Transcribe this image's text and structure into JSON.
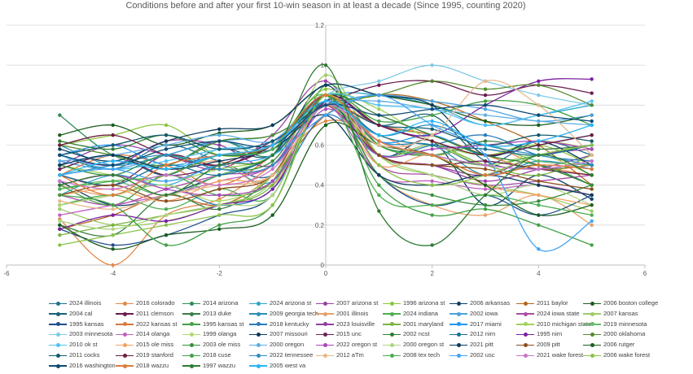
{
  "chart_data": {
    "type": "scatter",
    "title": "Conditions before and after your first 10-win season in at least a decade (Since 1995, counting 2020)",
    "xlabel": "",
    "ylabel": "",
    "xlim": [
      -6,
      6
    ],
    "ylim": [
      0,
      1.2
    ],
    "x_ticks": [
      "-6",
      "-4",
      "-2",
      "0",
      "2",
      "4",
      "6"
    ],
    "y_ticks": [
      "0",
      "0.2",
      "0.4",
      "0.6",
      "0.8",
      "1",
      "1.2"
    ],
    "grid": "horizontal",
    "legend_position": "bottom",
    "x": [
      -5,
      -4,
      -3,
      -2,
      -1,
      0,
      1,
      2,
      3,
      4,
      5
    ],
    "series": [
      {
        "name": "2024 illinois",
        "color": "#1f6f8b",
        "values": [
          0.55,
          0.48,
          0.6,
          0.52,
          0.45,
          0.8,
          0.55,
          0.6,
          0.5,
          0.62,
          0.55
        ]
      },
      {
        "name": "2016 colorado",
        "color": "#e2874a",
        "values": [
          0.23,
          0.0,
          0.25,
          0.33,
          0.5,
          0.72,
          0.65,
          0.55,
          0.6,
          0.5,
          0.45
        ]
      },
      {
        "name": "2014 arizona",
        "color": "#2e8b57",
        "values": [
          0.75,
          0.55,
          0.5,
          0.62,
          0.55,
          0.85,
          0.6,
          0.55,
          0.45,
          0.5,
          0.4
        ]
      },
      {
        "name": "2024 arizona st",
        "color": "#2aa7c9",
        "values": [
          0.35,
          0.45,
          0.4,
          0.5,
          0.42,
          0.82,
          0.85,
          0.8,
          0.7,
          0.75,
          0.8
        ]
      },
      {
        "name": "2007 arizona st",
        "color": "#9b3fa8",
        "values": [
          0.5,
          0.6,
          0.55,
          0.48,
          0.65,
          0.92,
          0.55,
          0.5,
          0.42,
          0.48,
          0.55
        ]
      },
      {
        "name": "1996 arizona st",
        "color": "#8cc63f",
        "values": [
          0.6,
          0.65,
          0.7,
          0.55,
          0.6,
          0.88,
          0.7,
          0.65,
          0.55,
          0.6,
          0.5
        ]
      },
      {
        "name": "2006 arkansas",
        "color": "#0e3f66",
        "values": [
          0.42,
          0.3,
          0.35,
          0.45,
          0.55,
          0.9,
          0.55,
          0.62,
          0.3,
          0.45,
          0.33
        ]
      },
      {
        "name": "2011 baylor",
        "color": "#b5651d",
        "values": [
          0.18,
          0.25,
          0.35,
          0.3,
          0.45,
          0.75,
          0.85,
          0.82,
          0.72,
          0.6,
          0.4
        ]
      },
      {
        "name": "2006 boston college",
        "color": "#1b5e20",
        "values": [
          0.65,
          0.7,
          0.6,
          0.66,
          0.7,
          0.9,
          0.85,
          0.8,
          0.72,
          0.7,
          0.75
        ]
      },
      {
        "name": "2004 cal",
        "color": "#17627a",
        "values": [
          0.48,
          0.55,
          0.45,
          0.58,
          0.55,
          0.85,
          0.7,
          0.75,
          0.52,
          0.48,
          0.5
        ]
      },
      {
        "name": "2011 clemson",
        "color": "#6a1b4d",
        "values": [
          0.45,
          0.4,
          0.55,
          0.5,
          0.6,
          0.8,
          0.9,
          0.92,
          0.85,
          0.9,
          0.86
        ]
      },
      {
        "name": "2013 duke",
        "color": "#3a7d44",
        "values": [
          0.2,
          0.15,
          0.35,
          0.28,
          0.45,
          0.85,
          0.6,
          0.55,
          0.62,
          0.58,
          0.6
        ]
      },
      {
        "name": "2009 georgia tech",
        "color": "#2d8fb5",
        "values": [
          0.6,
          0.5,
          0.55,
          0.62,
          0.58,
          0.85,
          0.62,
          0.6,
          0.45,
          0.52,
          0.48
        ]
      },
      {
        "name": "2001 illinois",
        "color": "#e6a36b",
        "values": [
          0.4,
          0.35,
          0.45,
          0.52,
          0.4,
          0.82,
          0.45,
          0.3,
          0.25,
          0.35,
          0.2
        ]
      },
      {
        "name": "2024 indiana",
        "color": "#4caf50",
        "values": [
          0.3,
          0.35,
          0.28,
          0.38,
          0.35,
          0.9,
          0.6,
          0.55,
          0.5,
          0.55,
          0.6
        ]
      },
      {
        "name": "2002 iowa",
        "color": "#4aa3df",
        "values": [
          0.52,
          0.48,
          0.55,
          0.62,
          0.65,
          0.8,
          0.85,
          0.82,
          0.78,
          0.72,
          0.75
        ]
      },
      {
        "name": "2024 iowa state",
        "color": "#a64ca6",
        "values": [
          0.35,
          0.3,
          0.38,
          0.45,
          0.5,
          0.85,
          0.5,
          0.45,
          0.4,
          0.42,
          0.45
        ]
      },
      {
        "name": "2007 kansas",
        "color": "#9ccc65",
        "values": [
          0.28,
          0.2,
          0.22,
          0.3,
          0.42,
          0.95,
          0.55,
          0.45,
          0.4,
          0.35,
          0.27
        ]
      },
      {
        "name": "1995 kansas",
        "color": "#1d4e89",
        "values": [
          0.18,
          0.1,
          0.15,
          0.25,
          0.35,
          0.82,
          0.45,
          0.3,
          0.35,
          0.25,
          0.35
        ]
      },
      {
        "name": "2022 kansas st",
        "color": "#d9773a",
        "values": [
          0.45,
          0.55,
          0.5,
          0.4,
          0.55,
          0.8,
          0.7,
          0.65,
          0.55,
          0.48,
          0.5
        ]
      },
      {
        "name": "1995 kansas st",
        "color": "#43a047",
        "values": [
          0.4,
          0.3,
          0.45,
          0.35,
          0.42,
          0.85,
          0.72,
          0.75,
          0.82,
          0.8,
          0.7
        ]
      },
      {
        "name": "2018 kentucky",
        "color": "#2b7bb9",
        "values": [
          0.3,
          0.35,
          0.4,
          0.3,
          0.38,
          0.75,
          0.55,
          0.6,
          0.65,
          0.55,
          0.52
        ]
      },
      {
        "name": "2023 louisville",
        "color": "#8e3fa0",
        "values": [
          0.55,
          0.5,
          0.62,
          0.6,
          0.5,
          0.82,
          0.55,
          0.5,
          0.45,
          0.55,
          0.58
        ]
      },
      {
        "name": "2001 maryland",
        "color": "#7cb342",
        "values": [
          0.15,
          0.2,
          0.25,
          0.3,
          0.4,
          0.85,
          0.55,
          0.6,
          0.5,
          0.45,
          0.55
        ]
      },
      {
        "name": "2017 miami",
        "color": "#2196f3",
        "values": [
          0.55,
          0.6,
          0.5,
          0.55,
          0.58,
          0.85,
          0.62,
          0.65,
          0.55,
          0.6,
          0.65
        ]
      },
      {
        "name": "2010 michigan state",
        "color": "#a1d25a",
        "values": [
          0.5,
          0.45,
          0.42,
          0.48,
          0.55,
          0.85,
          0.78,
          0.62,
          0.55,
          0.62,
          0.58
        ]
      },
      {
        "name": "2019 minnesota",
        "color": "#66bb6a",
        "values": [
          0.38,
          0.42,
          0.35,
          0.45,
          0.55,
          0.82,
          0.62,
          0.55,
          0.6,
          0.52,
          0.5
        ]
      },
      {
        "name": "2003 minnesota",
        "color": "#80cbe5",
        "values": [
          0.5,
          0.55,
          0.48,
          0.58,
          0.6,
          0.85,
          0.92,
          1.0,
          0.92,
          0.85,
          0.8
        ]
      },
      {
        "name": "2014 olanga",
        "color": "#c060c0",
        "values": [
          0.25,
          0.3,
          0.35,
          0.42,
          0.5,
          0.8,
          0.45,
          0.42,
          0.38,
          0.4,
          0.35
        ]
      },
      {
        "name": "1999 olanga",
        "color": "#b2d96a",
        "values": [
          0.3,
          0.35,
          0.4,
          0.32,
          0.45,
          0.85,
          0.55,
          0.6,
          0.5,
          0.55,
          0.45
        ]
      },
      {
        "name": "2007 missouri",
        "color": "#0d3b5e",
        "values": [
          0.58,
          0.52,
          0.62,
          0.68,
          0.7,
          0.9,
          0.85,
          0.8,
          0.55,
          0.62,
          0.5
        ]
      },
      {
        "name": "2015 unc",
        "color": "#6b2150",
        "values": [
          0.48,
          0.55,
          0.45,
          0.5,
          0.62,
          0.8,
          0.55,
          0.5,
          0.52,
          0.48,
          0.45
        ]
      },
      {
        "name": "2002 ncst",
        "color": "#2e7d32",
        "values": [
          0.62,
          0.58,
          0.65,
          0.55,
          0.6,
          0.85,
          0.75,
          0.65,
          0.55,
          0.5,
          0.4
        ]
      },
      {
        "name": "2012 nirn",
        "color": "#1a7296",
        "values": [
          0.45,
          0.4,
          0.5,
          0.45,
          0.55,
          0.82,
          0.65,
          0.6,
          0.58,
          0.55,
          0.6
        ]
      },
      {
        "name": "1995 nirn",
        "color": "#7b1fa2",
        "values": [
          0.18,
          0.25,
          0.22,
          0.3,
          0.38,
          0.82,
          0.7,
          0.65,
          0.8,
          0.92,
          0.93
        ]
      },
      {
        "name": "2000 oklahoma",
        "color": "#558b2f",
        "values": [
          0.6,
          0.55,
          0.5,
          0.62,
          0.65,
          0.8,
          0.85,
          0.92,
          0.88,
          0.9,
          0.8
        ]
      },
      {
        "name": "2010 ok st",
        "color": "#4fc3f7",
        "values": [
          0.55,
          0.48,
          0.52,
          0.58,
          0.62,
          0.85,
          0.8,
          0.78,
          0.7,
          0.75,
          0.82
        ]
      },
      {
        "name": "2015 ole miss",
        "color": "#f4a261",
        "values": [
          0.35,
          0.38,
          0.32,
          0.42,
          0.45,
          0.8,
          0.5,
          0.55,
          0.4,
          0.35,
          0.3
        ]
      },
      {
        "name": "2003 ole miss",
        "color": "#388e3c",
        "values": [
          0.5,
          0.45,
          0.55,
          0.48,
          0.52,
          0.85,
          0.45,
          0.35,
          0.3,
          0.32,
          0.4
        ]
      },
      {
        "name": "2000 oregon",
        "color": "#5dade2",
        "values": [
          0.52,
          0.55,
          0.6,
          0.65,
          0.62,
          0.8,
          0.82,
          0.78,
          0.75,
          0.72,
          0.7
        ]
      },
      {
        "name": "2022 oregon st",
        "color": "#ab47bc",
        "values": [
          0.4,
          0.45,
          0.38,
          0.35,
          0.42,
          0.78,
          0.55,
          0.58,
          0.6,
          0.62,
          0.58
        ]
      },
      {
        "name": "2000 oregon st",
        "color": "#aed581",
        "values": [
          0.22,
          0.18,
          0.25,
          0.3,
          0.35,
          0.85,
          0.55,
          0.45,
          0.35,
          0.4,
          0.3
        ]
      },
      {
        "name": "2021 pitt",
        "color": "#0b3a5c",
        "values": [
          0.5,
          0.55,
          0.48,
          0.52,
          0.58,
          0.75,
          0.45,
          0.4,
          0.45,
          0.4,
          0.35
        ]
      },
      {
        "name": "2009 pitt",
        "color": "#8d4e1e",
        "values": [
          0.35,
          0.4,
          0.32,
          0.38,
          0.45,
          0.85,
          0.55,
          0.5,
          0.48,
          0.42,
          0.38
        ]
      },
      {
        "name": "2006 rutger",
        "color": "#1b5e20",
        "values": [
          0.2,
          0.08,
          0.15,
          0.18,
          0.25,
          0.7,
          0.6,
          0.55,
          0.4,
          0.25,
          0.3
        ]
      },
      {
        "name": "2011 cocks",
        "color": "#145a6e",
        "values": [
          0.55,
          0.6,
          0.65,
          0.58,
          0.62,
          0.8,
          0.7,
          0.68,
          0.6,
          0.65,
          0.62
        ]
      },
      {
        "name": "2019 stanford",
        "color": "#6d1b3e",
        "values": [
          0.6,
          0.65,
          0.55,
          0.5,
          0.6,
          0.85,
          0.7,
          0.62,
          0.55,
          0.6,
          0.65
        ]
      },
      {
        "name": "2018 cuse",
        "color": "#43a047",
        "values": [
          0.35,
          0.3,
          0.1,
          0.2,
          0.3,
          0.85,
          0.4,
          0.25,
          0.28,
          0.2,
          0.1
        ]
      },
      {
        "name": "2022 tennessee",
        "color": "#2c8ec0",
        "values": [
          0.45,
          0.5,
          0.55,
          0.48,
          0.5,
          0.82,
          0.65,
          0.7,
          0.6,
          0.55,
          0.5
        ]
      },
      {
        "name": "2012 aTm",
        "color": "#e8b88a",
        "values": [
          0.32,
          0.28,
          0.35,
          0.4,
          0.45,
          0.8,
          0.6,
          0.65,
          0.92,
          0.8,
          0.55
        ]
      },
      {
        "name": "2008 tex tech",
        "color": "#4caf50",
        "values": [
          0.38,
          0.42,
          0.45,
          0.55,
          0.58,
          0.85,
          0.35,
          0.3,
          0.35,
          0.3,
          0.25
        ]
      },
      {
        "name": "2002 usc",
        "color": "#42a5f5",
        "values": [
          0.45,
          0.48,
          0.42,
          0.5,
          0.55,
          0.75,
          0.85,
          0.7,
          0.55,
          0.08,
          0.22
        ]
      },
      {
        "name": "2021 wake forest",
        "color": "#c774c7",
        "values": [
          0.42,
          0.38,
          0.45,
          0.4,
          0.48,
          0.8,
          0.62,
          0.55,
          0.5,
          0.48,
          0.52
        ]
      },
      {
        "name": "2006 wake forest",
        "color": "#8bc34a",
        "values": [
          0.1,
          0.15,
          0.2,
          0.25,
          0.3,
          0.85,
          0.5,
          0.4,
          0.45,
          0.55,
          0.6
        ]
      },
      {
        "name": "2016 washington",
        "color": "#0f4c75",
        "values": [
          0.55,
          0.5,
          0.58,
          0.62,
          0.6,
          0.8,
          0.75,
          0.78,
          0.8,
          0.75,
          0.72
        ]
      },
      {
        "name": "2018 wazzu",
        "color": "#e07b39",
        "values": [
          0.45,
          0.35,
          0.5,
          0.55,
          0.6,
          0.85,
          0.62,
          0.55,
          0.45,
          0.5,
          0.48
        ]
      },
      {
        "name": "1997 wazzu",
        "color": "#2e7d32",
        "values": [
          0.4,
          0.45,
          0.35,
          0.5,
          0.55,
          1.0,
          0.27,
          0.1,
          0.35,
          0.55,
          0.45
        ]
      },
      {
        "name": "2005 west va",
        "color": "#29b6f6",
        "values": [
          0.45,
          0.52,
          0.48,
          0.55,
          0.6,
          0.82,
          0.65,
          0.72,
          0.6,
          0.62,
          0.7
        ]
      }
    ]
  }
}
